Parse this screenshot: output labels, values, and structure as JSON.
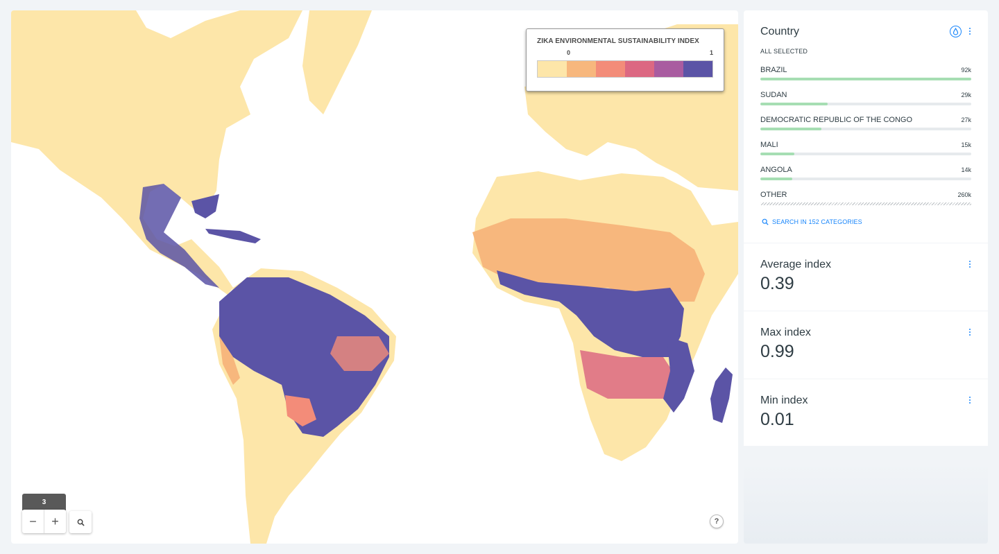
{
  "map": {
    "legend": {
      "title": "ZIKA ENVIRONMENTAL SUSTAINABILITY INDEX",
      "min_label": "0",
      "max_label": "1",
      "colors": [
        "#fde6a9",
        "#f7b77d",
        "#f38c79",
        "#dc6882",
        "#a95ca0",
        "#5b54a6"
      ]
    },
    "zoom_level": "3",
    "controls": {
      "zoom_out": "−",
      "zoom_in": "+",
      "help": "?"
    },
    "colors": {
      "ocean": "#ffffff",
      "land_low": "#fde6a9",
      "land_mid": "#f7b77d",
      "land_high": "#5b54a6"
    }
  },
  "sidebar": {
    "country": {
      "title": "Country",
      "selection_label": "ALL SELECTED",
      "categories": [
        {
          "name": "BRAZIL",
          "value_label": "92k",
          "fraction": 1.0
        },
        {
          "name": "SUDAN",
          "value_label": "29k",
          "fraction": 0.32
        },
        {
          "name": "DEMOCRATIC REPUBLIC OF THE CONGO",
          "value_label": "27k",
          "fraction": 0.29
        },
        {
          "name": "MALI",
          "value_label": "15k",
          "fraction": 0.16
        },
        {
          "name": "ANGOLA",
          "value_label": "14k",
          "fraction": 0.15
        },
        {
          "name": "OTHER",
          "value_label": "260k",
          "fraction": 1.0
        }
      ],
      "search_label": "SEARCH IN 152 CATEGORIES",
      "accent_color": "#1785fb",
      "bar_color": "#a6deb3"
    },
    "average": {
      "title": "Average index",
      "value": "0.39"
    },
    "max": {
      "title": "Max index",
      "value": "0.99"
    },
    "min": {
      "title": "Min index",
      "value": "0.01"
    }
  }
}
